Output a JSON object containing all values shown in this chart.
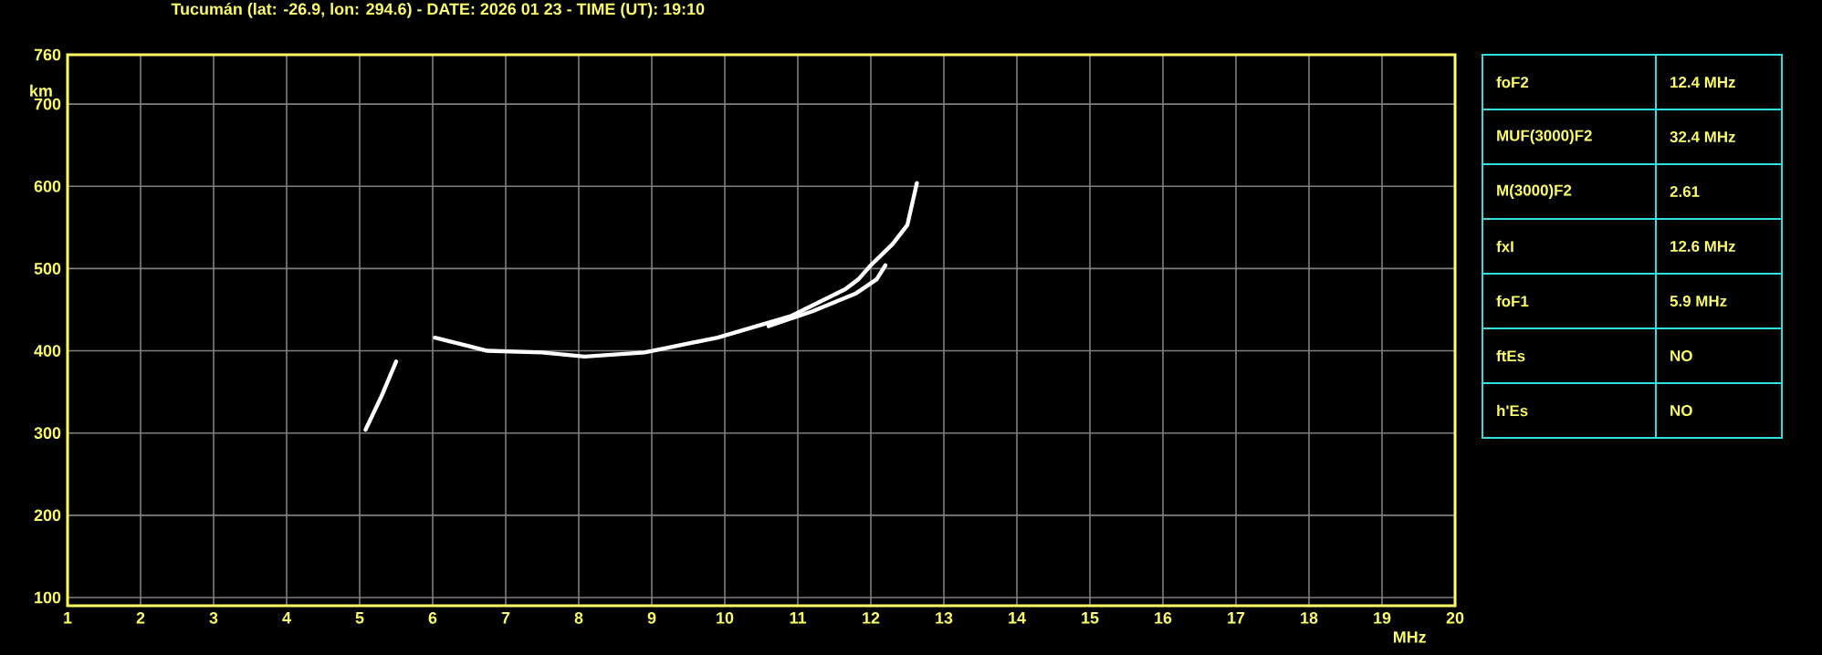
{
  "chart_data": [
    {
      "type": "line",
      "title": "Tucumán (lat: -26.9, lon: 294.6) - DATE: 2026 01 23 - TIME (UT): 19:10",
      "xlabel": "MHz",
      "ylabel": "km",
      "xlim": [
        1,
        20
      ],
      "ylim": [
        90,
        760
      ],
      "xticks": [
        1,
        2,
        3,
        4,
        5,
        6,
        7,
        8,
        9,
        10,
        11,
        12,
        13,
        14,
        15,
        16,
        17,
        18,
        19,
        20
      ],
      "yticks": [
        100,
        200,
        300,
        400,
        500,
        600,
        700,
        760
      ],
      "grid": true,
      "marker": "none",
      "line_style": "solid",
      "series": [
        {
          "color": "#ffffff",
          "x": [
            5.08,
            5.3,
            5.5
          ],
          "values": [
            304,
            345,
            387
          ]
        },
        {
          "color": "#ffffff",
          "x": [
            6.03,
            6.75,
            7.5,
            8.08,
            8.9,
            9.9,
            10.9,
            11.65,
            11.83,
            12.0,
            12.3,
            12.5,
            12.63
          ],
          "values": [
            416,
            400,
            398,
            393,
            398,
            416,
            442,
            475,
            487,
            504,
            530,
            553,
            604
          ]
        },
        {
          "color": "#ffffff",
          "x": [
            10.6,
            11.2,
            11.8,
            12.08,
            12.2
          ],
          "values": [
            430,
            448,
            470,
            487,
            504
          ]
        }
      ]
    },
    {
      "type": "other",
      "y_categories": [
        "foF2",
        "MUF(3000)F2",
        "M(3000)F2",
        "fxI",
        "foF1",
        "ftEs",
        "h'Es"
      ],
      "cell_labels": [
        [
          "12.4 MHz"
        ],
        [
          "32.4 MHz"
        ],
        [
          "2.61"
        ],
        [
          "12.6 MHz"
        ],
        [
          "5.9 MHz"
        ],
        [
          "NO"
        ],
        [
          "NO"
        ]
      ]
    }
  ]
}
